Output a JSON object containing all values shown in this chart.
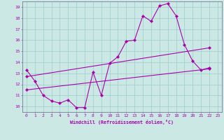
{
  "xlabel": "Windchill (Refroidissement éolien,°C)",
  "bg_color": "#cce8e4",
  "line_color": "#aa00aa",
  "grid_color": "#99cccc",
  "xlim": [
    -0.5,
    23.5
  ],
  "ylim": [
    9.5,
    19.5
  ],
  "xticks": [
    0,
    1,
    2,
    3,
    4,
    5,
    6,
    7,
    8,
    9,
    10,
    11,
    12,
    13,
    14,
    15,
    16,
    17,
    18,
    19,
    20,
    21,
    22,
    23
  ],
  "yticks": [
    10,
    11,
    12,
    13,
    14,
    15,
    16,
    17,
    18,
    19
  ],
  "jagged_x": [
    0,
    1,
    2,
    3,
    4,
    5,
    6,
    7,
    8,
    9,
    10,
    11,
    12,
    13,
    14,
    15,
    16,
    17,
    18,
    19,
    20,
    21,
    22
  ],
  "jagged_y": [
    13.3,
    12.3,
    11.0,
    10.5,
    10.3,
    10.6,
    9.9,
    9.9,
    13.1,
    11.0,
    13.9,
    14.5,
    15.9,
    16.0,
    18.2,
    17.7,
    19.1,
    19.3,
    18.2,
    15.6,
    14.1,
    13.3,
    13.5
  ],
  "trend1_x": [
    0,
    22
  ],
  "trend1_y": [
    11.5,
    13.4
  ],
  "trend2_x": [
    0,
    22
  ],
  "trend2_y": [
    12.7,
    15.3
  ]
}
